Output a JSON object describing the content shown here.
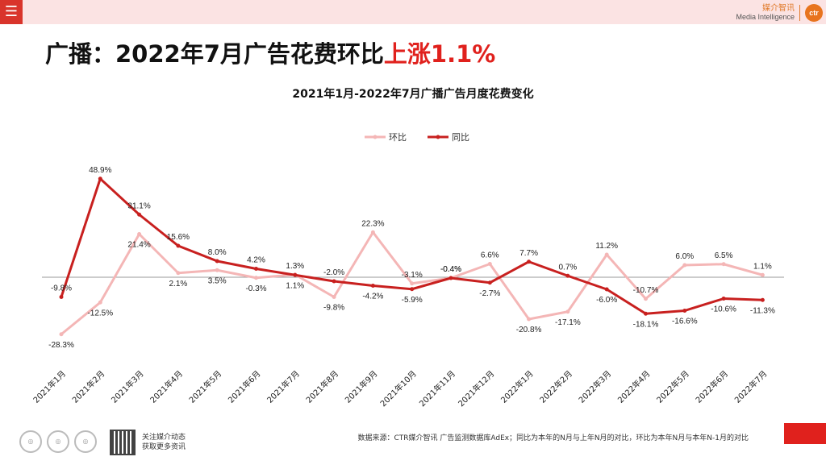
{
  "topbar": {
    "menu_icon": "menu-icon",
    "logo_cn": "媒介智讯",
    "logo_en": "Media Intelligence",
    "logo_badge": "ctr"
  },
  "headline": {
    "prefix": "广播：2022年7月广告花费环比",
    "highlight": "上涨1.1%"
  },
  "footer": {
    "note": "数据来源：CTR媒介智讯 广告监测数据库AdEx；同比为本年的N月与上年N月的对比，环比为本年N月与本年N-1月的对比",
    "qr_line1": "关注媒介动态",
    "qr_line2": "获取更多资讯"
  },
  "colors": {
    "mom": "#f4b6b6",
    "yoy": "#c8201f",
    "accent": "#e0211d"
  },
  "chart_data": {
    "type": "line",
    "title": "2021年1月-2022年7月广播广告月度花费变化",
    "categories": [
      "2021年1月",
      "2021年2月",
      "2021年3月",
      "2021年4月",
      "2021年5月",
      "2021年6月",
      "2021年7月",
      "2021年8月",
      "2021年9月",
      "2021年10月",
      "2021年11月",
      "2021年12月",
      "2022年1月",
      "2022年2月",
      "2022年3月",
      "2022年4月",
      "2022年5月",
      "2022年6月",
      "2022年7月"
    ],
    "series": [
      {
        "name": "环比",
        "values": [
          -28.3,
          -12.5,
          21.4,
          2.1,
          3.5,
          -0.3,
          1.3,
          -9.8,
          22.3,
          -3.1,
          -0.4,
          6.6,
          -20.8,
          -17.1,
          11.2,
          -10.7,
          6.0,
          6.5,
          1.1
        ]
      },
      {
        "name": "同比",
        "values": [
          -9.8,
          48.9,
          31.1,
          15.6,
          8.0,
          4.2,
          1.1,
          -2.0,
          -4.2,
          -5.9,
          -0.4,
          -2.7,
          7.7,
          0.7,
          -6.0,
          -18.1,
          -16.6,
          -10.6,
          -11.3
        ]
      }
    ],
    "legend_position": "top-center",
    "ylim": [
      -35,
      55
    ]
  }
}
